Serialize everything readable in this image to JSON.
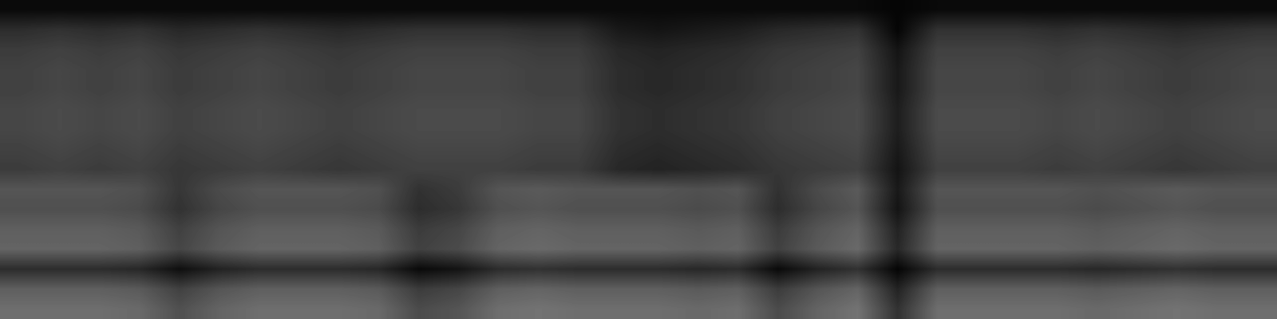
{
  "chart_data": {
    "type": "heatmap",
    "color": "gray",
    "tick_labels": false,
    "color_range": [
      0,
      255
    ],
    "cells": [
      [
        10,
        10,
        10,
        10,
        10,
        10,
        10,
        10,
        10,
        10,
        10,
        10,
        10,
        10,
        10,
        10,
        10,
        10,
        10,
        10,
        10,
        10,
        5,
        10,
        10,
        10,
        10,
        10,
        10,
        10,
        10,
        10
      ],
      [
        45,
        50,
        45,
        50,
        40,
        45,
        50,
        45,
        40,
        45,
        50,
        50,
        50,
        45,
        45,
        25,
        20,
        25,
        30,
        40,
        45,
        50,
        5,
        50,
        50,
        50,
        45,
        50,
        45,
        40,
        45,
        50
      ],
      [
        60,
        65,
        60,
        65,
        55,
        60,
        65,
        60,
        55,
        60,
        65,
        65,
        65,
        60,
        60,
        40,
        35,
        40,
        45,
        55,
        60,
        65,
        20,
        65,
        65,
        65,
        60,
        65,
        60,
        55,
        60,
        65
      ],
      [
        65,
        70,
        65,
        70,
        60,
        65,
        70,
        65,
        60,
        65,
        70,
        70,
        70,
        65,
        65,
        45,
        40,
        45,
        50,
        60,
        65,
        70,
        25,
        70,
        70,
        70,
        65,
        70,
        65,
        60,
        65,
        70
      ],
      [
        65,
        70,
        65,
        70,
        60,
        65,
        70,
        65,
        60,
        65,
        70,
        70,
        70,
        65,
        65,
        45,
        40,
        45,
        50,
        60,
        65,
        70,
        25,
        70,
        70,
        70,
        65,
        70,
        65,
        60,
        65,
        70
      ],
      [
        70,
        75,
        70,
        75,
        65,
        70,
        75,
        70,
        65,
        70,
        75,
        75,
        75,
        70,
        70,
        50,
        45,
        50,
        55,
        65,
        70,
        75,
        30,
        75,
        75,
        75,
        70,
        75,
        70,
        65,
        70,
        75
      ],
      [
        70,
        75,
        70,
        75,
        65,
        70,
        75,
        70,
        65,
        70,
        75,
        75,
        75,
        70,
        70,
        50,
        45,
        50,
        55,
        65,
        70,
        75,
        30,
        75,
        75,
        75,
        70,
        75,
        70,
        65,
        70,
        75
      ],
      [
        65,
        70,
        65,
        70,
        60,
        65,
        70,
        65,
        60,
        65,
        70,
        70,
        70,
        65,
        65,
        45,
        40,
        45,
        50,
        60,
        65,
        70,
        25,
        70,
        70,
        70,
        65,
        70,
        65,
        60,
        65,
        70
      ],
      [
        60,
        65,
        60,
        65,
        55,
        60,
        65,
        60,
        55,
        60,
        65,
        65,
        65,
        60,
        60,
        40,
        35,
        40,
        45,
        55,
        60,
        65,
        20,
        65,
        65,
        65,
        60,
        65,
        60,
        55,
        60,
        65
      ],
      [
        85,
        85,
        85,
        80,
        55,
        75,
        85,
        85,
        85,
        80,
        50,
        60,
        85,
        90,
        85,
        85,
        85,
        80,
        85,
        50,
        75,
        90,
        25,
        85,
        85,
        85,
        85,
        80,
        85,
        90,
        85,
        85
      ],
      [
        80,
        80,
        80,
        75,
        50,
        70,
        80,
        80,
        80,
        75,
        45,
        55,
        80,
        85,
        80,
        80,
        80,
        75,
        80,
        45,
        70,
        85,
        20,
        80,
        80,
        80,
        80,
        75,
        80,
        85,
        80,
        80
      ],
      [
        95,
        95,
        95,
        90,
        65,
        85,
        95,
        95,
        95,
        90,
        60,
        70,
        95,
        100,
        95,
        95,
        95,
        90,
        95,
        60,
        85,
        100,
        35,
        95,
        95,
        95,
        95,
        90,
        95,
        100,
        95,
        95
      ],
      [
        100,
        100,
        100,
        95,
        70,
        90,
        100,
        100,
        100,
        95,
        65,
        75,
        100,
        105,
        100,
        100,
        100,
        95,
        100,
        65,
        90,
        105,
        40,
        100,
        100,
        100,
        100,
        95,
        100,
        105,
        100,
        100
      ],
      [
        45,
        45,
        45,
        40,
        15,
        35,
        45,
        45,
        45,
        40,
        10,
        20,
        45,
        50,
        45,
        45,
        45,
        40,
        45,
        10,
        35,
        50,
        5,
        45,
        45,
        45,
        45,
        40,
        45,
        50,
        45,
        45
      ],
      [
        95,
        95,
        95,
        90,
        65,
        85,
        95,
        95,
        95,
        90,
        60,
        70,
        95,
        100,
        95,
        95,
        95,
        90,
        95,
        60,
        85,
        100,
        35,
        95,
        95,
        95,
        95,
        90,
        95,
        100,
        95,
        95
      ],
      [
        110,
        110,
        110,
        105,
        80,
        100,
        110,
        110,
        110,
        105,
        75,
        85,
        110,
        115,
        110,
        110,
        110,
        105,
        110,
        75,
        100,
        115,
        50,
        110,
        110,
        110,
        110,
        105,
        110,
        115,
        110,
        110
      ]
    ]
  }
}
